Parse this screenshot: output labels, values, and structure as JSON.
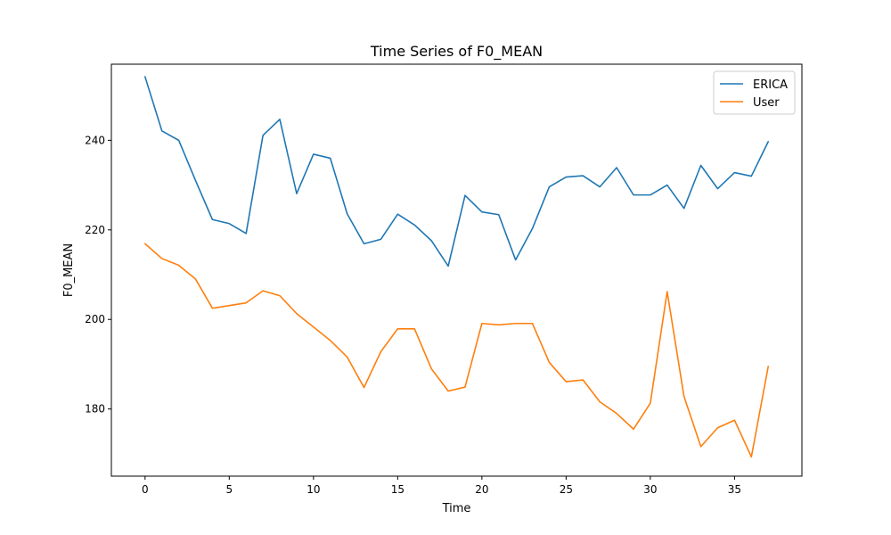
{
  "chart_data": {
    "type": "line",
    "title": "Time Series of F0_MEAN",
    "xlabel": "Time",
    "ylabel": "F0_MEAN",
    "xlim": [
      -2,
      39
    ],
    "ylim": [
      165,
      257
    ],
    "xticks": [
      0,
      5,
      10,
      15,
      20,
      25,
      30,
      35
    ],
    "yticks": [
      180,
      200,
      220,
      240
    ],
    "grid": false,
    "legend_position": "top-right",
    "x": [
      0,
      1,
      2,
      3,
      4,
      5,
      6,
      7,
      8,
      9,
      10,
      11,
      12,
      13,
      14,
      15,
      16,
      17,
      18,
      19,
      20,
      21,
      22,
      23,
      24,
      25,
      26,
      27,
      28,
      29,
      30,
      31,
      32,
      33,
      34,
      35,
      36,
      37
    ],
    "series": [
      {
        "name": "ERICA",
        "color": "#1f77b4",
        "values": [
          254.2,
          242.1,
          240.0,
          231.0,
          222.3,
          221.4,
          219.2,
          241.1,
          244.7,
          228.1,
          236.9,
          236.0,
          223.6,
          216.9,
          217.9,
          223.5,
          221.1,
          217.6,
          211.9,
          227.7,
          224.0,
          223.4,
          213.3,
          220.3,
          229.6,
          231.8,
          232.1,
          229.6,
          233.9,
          227.8,
          227.8,
          230.0,
          224.8,
          234.4,
          229.2,
          232.8,
          232.0,
          239.7
        ]
      },
      {
        "name": "User",
        "color": "#ff7f0e",
        "values": [
          216.9,
          213.6,
          212.1,
          209.0,
          202.5,
          203.1,
          203.7,
          206.4,
          205.3,
          201.3,
          198.3,
          195.3,
          191.6,
          184.8,
          192.8,
          197.9,
          197.9,
          189.0,
          184.0,
          184.9,
          199.1,
          198.8,
          199.1,
          199.1,
          190.4,
          186.1,
          186.5,
          181.6,
          179.0,
          175.5,
          181.3,
          206.2,
          182.8,
          171.6,
          175.8,
          177.5,
          169.3,
          189.5
        ]
      }
    ]
  }
}
